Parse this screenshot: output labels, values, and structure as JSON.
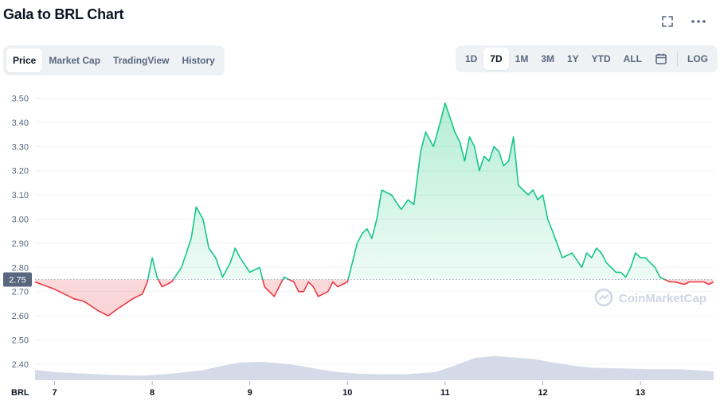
{
  "header": {
    "title": "Gala to BRL Chart"
  },
  "icons": [
    "fullscreen-icon",
    "more-options-icon",
    "calendar-icon"
  ],
  "tabs": [
    {
      "label": "Price",
      "active": true
    },
    {
      "label": "Market Cap",
      "active": false
    },
    {
      "label": "TradingView",
      "active": false
    },
    {
      "label": "History",
      "active": false
    }
  ],
  "ranges": [
    {
      "label": "1D",
      "active": false
    },
    {
      "label": "7D",
      "active": true
    },
    {
      "label": "1M",
      "active": false
    },
    {
      "label": "3M",
      "active": false
    },
    {
      "label": "1Y",
      "active": false
    },
    {
      "label": "YTD",
      "active": false
    },
    {
      "label": "ALL",
      "active": false
    }
  ],
  "log_label": "LOG",
  "colors": {
    "up": "#16c784",
    "down": "#ea3943",
    "volume": "#cfd6e4",
    "grid": "#eff2f5",
    "text": "#58667e"
  },
  "chart_data": {
    "type": "area",
    "currency_label": "BRL",
    "reference_price": 2.75,
    "reference_label": "2.75",
    "ylim": [
      2.35,
      3.55
    ],
    "y_ticks": [
      "3.50",
      "3.40",
      "3.30",
      "3.20",
      "3.10",
      "3.00",
      "2.90",
      "2.80",
      "2.70",
      "2.60",
      "2.50",
      "2.40"
    ],
    "x_ticks": [
      {
        "day": 0,
        "label": "7"
      },
      {
        "day": 1,
        "label": "8"
      },
      {
        "day": 2,
        "label": "9"
      },
      {
        "day": 3,
        "label": "10"
      },
      {
        "day": 4,
        "label": "11"
      },
      {
        "day": 5,
        "label": "12"
      },
      {
        "day": 6,
        "label": "13"
      }
    ],
    "x_range": [
      -0.2,
      6.75
    ],
    "price_series": {
      "name": "Price",
      "x": [
        -0.2,
        0.0,
        0.1,
        0.2,
        0.3,
        0.45,
        0.55,
        0.65,
        0.8,
        0.9,
        0.95,
        1.0,
        1.05,
        1.1,
        1.2,
        1.3,
        1.4,
        1.45,
        1.52,
        1.58,
        1.65,
        1.72,
        1.8,
        1.85,
        1.9,
        2.0,
        2.1,
        2.15,
        2.25,
        2.3,
        2.35,
        2.45,
        2.5,
        2.55,
        2.6,
        2.65,
        2.7,
        2.8,
        2.85,
        2.9,
        3.0,
        3.05,
        3.1,
        3.15,
        3.2,
        3.25,
        3.3,
        3.35,
        3.45,
        3.55,
        3.62,
        3.68,
        3.75,
        3.8,
        3.88,
        3.95,
        4.0,
        4.05,
        4.1,
        4.15,
        4.2,
        4.25,
        4.3,
        4.35,
        4.4,
        4.45,
        4.5,
        4.55,
        4.6,
        4.65,
        4.7,
        4.75,
        4.8,
        4.85,
        4.9,
        4.95,
        5.0,
        5.05,
        5.1,
        5.2,
        5.3,
        5.4,
        5.45,
        5.5,
        5.55,
        5.6,
        5.65,
        5.7,
        5.75,
        5.8,
        5.85,
        5.9,
        5.95,
        6.0,
        6.05,
        6.1,
        6.15,
        6.2,
        6.3,
        6.35,
        6.45,
        6.5,
        6.55,
        6.6,
        6.65,
        6.7,
        6.75
      ],
      "y": [
        2.74,
        2.71,
        2.69,
        2.67,
        2.66,
        2.62,
        2.6,
        2.63,
        2.67,
        2.69,
        2.74,
        2.84,
        2.76,
        2.72,
        2.74,
        2.8,
        2.92,
        3.05,
        3.0,
        2.88,
        2.84,
        2.76,
        2.82,
        2.88,
        2.84,
        2.78,
        2.8,
        2.72,
        2.68,
        2.72,
        2.76,
        2.74,
        2.7,
        2.7,
        2.74,
        2.72,
        2.68,
        2.7,
        2.74,
        2.72,
        2.74,
        2.82,
        2.9,
        2.94,
        2.96,
        2.92,
        3.0,
        3.12,
        3.1,
        3.04,
        3.08,
        3.06,
        3.28,
        3.36,
        3.3,
        3.4,
        3.48,
        3.42,
        3.36,
        3.32,
        3.24,
        3.34,
        3.3,
        3.2,
        3.26,
        3.24,
        3.3,
        3.28,
        3.22,
        3.24,
        3.34,
        3.14,
        3.12,
        3.1,
        3.12,
        3.08,
        3.1,
        3.0,
        2.95,
        2.84,
        2.86,
        2.8,
        2.86,
        2.84,
        2.88,
        2.86,
        2.82,
        2.8,
        2.78,
        2.78,
        2.76,
        2.8,
        2.86,
        2.84,
        2.84,
        2.82,
        2.8,
        2.76,
        2.74,
        2.74,
        2.73,
        2.74,
        2.74,
        2.74,
        2.74,
        2.73,
        2.74
      ]
    },
    "volume_series": {
      "name": "Volume",
      "x": [
        -0.2,
        0.0,
        0.3,
        0.6,
        0.9,
        1.0,
        1.2,
        1.5,
        1.7,
        1.9,
        2.1,
        2.3,
        2.5,
        2.7,
        2.9,
        3.1,
        3.3,
        3.6,
        3.9,
        4.1,
        4.3,
        4.5,
        4.7,
        4.9,
        5.1,
        5.3,
        5.5,
        5.8,
        6.1,
        6.4,
        6.75
      ],
      "y": [
        0.28,
        0.22,
        0.18,
        0.14,
        0.12,
        0.14,
        0.18,
        0.26,
        0.38,
        0.48,
        0.5,
        0.46,
        0.4,
        0.3,
        0.22,
        0.18,
        0.16,
        0.16,
        0.22,
        0.4,
        0.6,
        0.66,
        0.62,
        0.58,
        0.48,
        0.4,
        0.34,
        0.32,
        0.3,
        0.3,
        0.24
      ]
    },
    "watermark": "CoinMarketCap"
  }
}
